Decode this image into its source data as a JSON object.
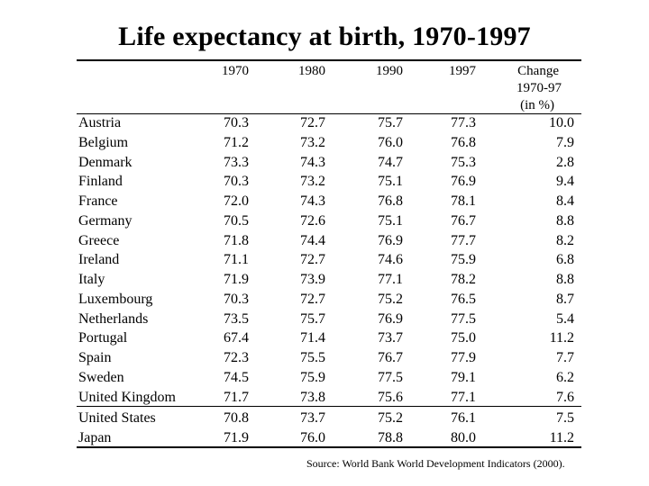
{
  "title": "Life expectancy at birth, 1970-1997",
  "source": "Source: World Bank World Development Indicators (2000).",
  "chart_data": {
    "type": "table",
    "title": "Life expectancy at birth, 1970-1997",
    "columns": [
      "",
      "1970",
      "1980",
      "1990",
      "1997",
      "Change 1970-97 (in %)"
    ],
    "change_header_lines": [
      "Change",
      "1970-97",
      "(in %)"
    ],
    "rows": [
      {
        "country": "Austria",
        "values": [
          "70.3",
          "72.7",
          "75.7",
          "77.3",
          "10.0"
        ]
      },
      {
        "country": "Belgium",
        "values": [
          "71.2",
          "73.2",
          "76.0",
          "76.8",
          "7.9"
        ]
      },
      {
        "country": "Denmark",
        "values": [
          "73.3",
          "74.3",
          "74.7",
          "75.3",
          "2.8"
        ]
      },
      {
        "country": "Finland",
        "values": [
          "70.3",
          "73.2",
          "75.1",
          "76.9",
          "9.4"
        ]
      },
      {
        "country": "France",
        "values": [
          "72.0",
          "74.3",
          "76.8",
          "78.1",
          "8.4"
        ]
      },
      {
        "country": "Germany",
        "values": [
          "70.5",
          "72.6",
          "75.1",
          "76.7",
          "8.8"
        ]
      },
      {
        "country": "Greece",
        "values": [
          "71.8",
          "74.4",
          "76.9",
          "77.7",
          "8.2"
        ]
      },
      {
        "country": "Ireland",
        "values": [
          "71.1",
          "72.7",
          "74.6",
          "75.9",
          "6.8"
        ]
      },
      {
        "country": "Italy",
        "values": [
          "71.9",
          "73.9",
          "77.1",
          "78.2",
          "8.8"
        ]
      },
      {
        "country": "Luxembourg",
        "values": [
          "70.3",
          "72.7",
          "75.2",
          "76.5",
          "8.7"
        ]
      },
      {
        "country": "Netherlands",
        "values": [
          "73.5",
          "75.7",
          "76.9",
          "77.5",
          "5.4"
        ]
      },
      {
        "country": "Portugal",
        "values": [
          "67.4",
          "71.4",
          "73.7",
          "75.0",
          "11.2"
        ]
      },
      {
        "country": "Spain",
        "values": [
          "72.3",
          "75.5",
          "76.7",
          "77.9",
          "7.7"
        ]
      },
      {
        "country": "Sweden",
        "values": [
          "74.5",
          "75.9",
          "77.5",
          "79.1",
          "6.2"
        ]
      },
      {
        "country": "United Kingdom",
        "values": [
          "71.7",
          "73.8",
          "75.6",
          "77.1",
          "7.6"
        ]
      },
      {
        "country": "United States",
        "values": [
          "70.8",
          "73.7",
          "75.2",
          "76.1",
          "7.5"
        ]
      },
      {
        "country": "Japan",
        "values": [
          "71.9",
          "76.0",
          "78.8",
          "80.0",
          "11.2"
        ]
      }
    ]
  }
}
